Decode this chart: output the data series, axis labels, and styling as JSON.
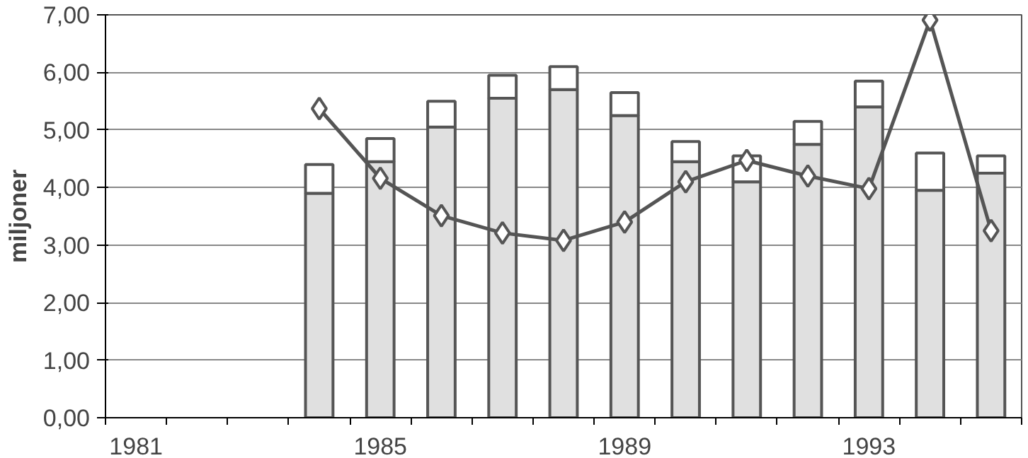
{
  "chart_data": {
    "type": "bar",
    "stacked": true,
    "ylabel": "miljoner",
    "categories": [
      "1981",
      null,
      null,
      null,
      "1985",
      null,
      null,
      null,
      "1989",
      null,
      null,
      null,
      "1993",
      null,
      null
    ],
    "series": [
      {
        "color": "#e0e0e0",
        "values": [
          null,
          null,
          null,
          3.9,
          4.45,
          5.05,
          5.55,
          5.7,
          5.25,
          4.45,
          4.1,
          4.75,
          5.4,
          3.95,
          4.25
        ]
      },
      {
        "color": "#ffffff",
        "values": [
          null,
          null,
          null,
          0.5,
          0.4,
          0.45,
          0.4,
          0.4,
          0.4,
          0.35,
          0.45,
          0.4,
          0.45,
          0.65,
          0.3
        ]
      },
      {
        "type": "line",
        "color": "#555555",
        "marker": "diamond",
        "values": [
          null,
          null,
          null,
          5.37,
          4.16,
          3.51,
          3.21,
          3.08,
          3.4,
          4.1,
          4.47,
          4.2,
          3.98,
          6.91,
          3.25
        ]
      }
    ],
    "ylim": [
      0,
      7
    ],
    "yticks": [
      {
        "value": 0,
        "label": "0,00"
      },
      {
        "value": 1,
        "label": "1,00"
      },
      {
        "value": 2,
        "label": "2,00"
      },
      {
        "value": 3,
        "label": "3,00"
      },
      {
        "value": 4,
        "label": "4,00"
      },
      {
        "value": 5,
        "label": "5,00"
      },
      {
        "value": 6,
        "label": "6,00"
      },
      {
        "value": 7,
        "label": "7,00"
      }
    ],
    "grid": "y"
  }
}
